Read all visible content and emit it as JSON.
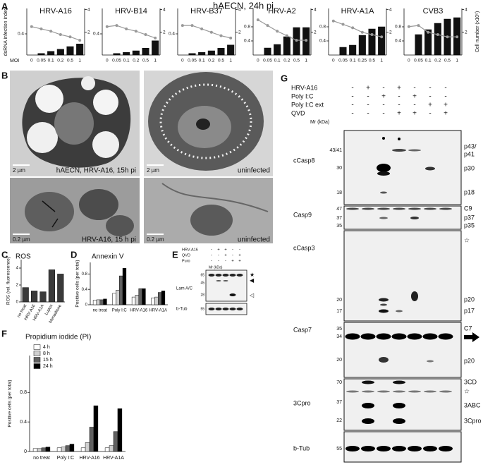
{
  "panel_labels": [
    "A",
    "B",
    "C",
    "D",
    "E",
    "F",
    "G"
  ],
  "panel_a": {
    "title": "hAECN, 24h pi",
    "y_label": "dsRNA infection index",
    "y2_label": "Cell number (x10⁵)",
    "x_label": "MOI"
  },
  "chart_data": [
    {
      "type": "bar",
      "title": "HRV-A16",
      "categories": [
        "0",
        "0.05",
        "0.1",
        "0.2",
        "0.5",
        "1"
      ],
      "series": [
        {
          "color": "#111111",
          "values": [
            0,
            0.03,
            0.07,
            0.11,
            0.16,
            0.21
          ]
        },
        {
          "color": "#999999",
          "type": "line",
          "axis": "y2",
          "values": [
            2.5,
            2.3,
            2.1,
            1.8,
            1.6,
            1.3
          ]
        }
      ],
      "ylim": [
        0,
        0.88
      ],
      "yticks": [
        0.4
      ],
      "y2lim": [
        0,
        4.1
      ],
      "y2ticks": [
        2,
        4
      ]
    },
    {
      "type": "bar",
      "title": "HRV-B14",
      "categories": [
        "0",
        "0.05",
        "0.1",
        "0.2",
        "0.5",
        "1"
      ],
      "series": [
        {
          "color": "#111111",
          "values": [
            0,
            0.03,
            0.05,
            0.08,
            0.13,
            0.27
          ]
        },
        {
          "color": "#999999",
          "type": "line",
          "axis": "y2",
          "values": [
            2.5,
            2.6,
            2.3,
            2.1,
            1.8,
            1.5
          ]
        }
      ],
      "ylim": [
        0,
        0.88
      ],
      "yticks": [
        0.4
      ],
      "y2lim": [
        0,
        4.1
      ],
      "y2ticks": [
        2,
        4
      ]
    },
    {
      "type": "bar",
      "title": "HRV-B37",
      "categories": [
        "0",
        "0.05",
        "0.1",
        "0.2",
        "0.5",
        "1"
      ],
      "series": [
        {
          "color": "#111111",
          "values": [
            0,
            0.03,
            0.05,
            0.08,
            0.13,
            0.19
          ]
        },
        {
          "color": "#999999",
          "type": "line",
          "axis": "y2",
          "values": [
            2.6,
            2.6,
            2.3,
            2.0,
            1.7,
            1.5
          ]
        }
      ],
      "ylim": [
        0,
        0.88
      ],
      "yticks": [
        0.4
      ],
      "y2lim": [
        0,
        4.1
      ],
      "y2ticks": [
        2,
        4
      ]
    },
    {
      "type": "bar",
      "title": "HRV-A2",
      "categories": [
        "0",
        "0.05",
        "0.1",
        "0.2",
        "0.5",
        "1"
      ],
      "series": [
        {
          "color": "#111111",
          "values": [
            0,
            0.2,
            0.3,
            0.52,
            0.78,
            0.78
          ]
        },
        {
          "color": "#999999",
          "type": "line",
          "axis": "y2",
          "values": [
            3.1,
            2.6,
            2.1,
            1.7,
            1.3,
            1.3
          ]
        }
      ],
      "ylim": [
        0,
        1.32
      ],
      "yticks": [
        0.4,
        0.8
      ],
      "y2lim": [
        0,
        4.1
      ],
      "y2ticks": [
        2,
        4
      ]
    },
    {
      "type": "bar",
      "title": "HRV-A1A",
      "categories": [
        "0",
        "0.05",
        "0.1",
        "0.25",
        "0.5",
        "1"
      ],
      "series": [
        {
          "color": "#111111",
          "values": [
            0,
            0.22,
            0.28,
            0.56,
            0.74,
            0.8
          ]
        },
        {
          "color": "#999999",
          "type": "line",
          "axis": "y2",
          "values": [
            3.0,
            2.7,
            2.4,
            2.0,
            1.8,
            1.6
          ]
        }
      ],
      "ylim": [
        0,
        1.32
      ],
      "yticks": [
        0.4,
        0.8
      ],
      "y2lim": [
        0,
        4.1
      ],
      "y2ticks": [
        2,
        4
      ]
    },
    {
      "type": "bar",
      "title": "CVB3",
      "categories": [
        "0",
        "0.05",
        "0.1",
        "0.2",
        "0.5",
        "1"
      ],
      "series": [
        {
          "color": "#111111",
          "values": [
            0,
            0.58,
            0.72,
            0.9,
            1.02,
            1.06
          ]
        },
        {
          "color": "#999999",
          "type": "line",
          "axis": "y2",
          "values": [
            2.5,
            2.6,
            2.0,
            1.8,
            1.6,
            1.6
          ]
        }
      ],
      "ylim": [
        0,
        1.32
      ],
      "yticks": [
        0.4,
        0.8
      ],
      "y2lim": [
        0,
        4.1
      ],
      "y2ticks": [
        2,
        4
      ]
    },
    {
      "type": "bar",
      "title": "ROS",
      "y_label": "ROS (rel. fluorescence)",
      "categories": [
        "no treat",
        "HRV-A16",
        "HRV-A1A",
        "Lupox",
        "Menadione"
      ],
      "series": [
        {
          "color": "#3a3a3a",
          "values": [
            1.7,
            1.3,
            1.2,
            3.8,
            3.3
          ]
        }
      ],
      "ylim": [
        0,
        5
      ],
      "yticks": [
        0,
        2,
        4
      ]
    },
    {
      "type": "bar",
      "title": "Annexin V",
      "y_label": "Positive cells (per total)",
      "categories": [
        "no treat",
        "Poly I:C",
        "HRV-A16",
        "HRV-A1A"
      ],
      "series": [
        {
          "color": "#ffffff",
          "values": [
            0.12,
            0.3,
            0.2,
            0.18
          ]
        },
        {
          "color": "#d0d0d0",
          "values": [
            0.13,
            0.38,
            0.25,
            0.2
          ]
        },
        {
          "color": "#606060",
          "values": [
            0.13,
            0.75,
            0.42,
            0.32
          ]
        },
        {
          "color": "#000000",
          "values": [
            0.15,
            0.95,
            0.42,
            0.36
          ]
        }
      ],
      "ylim": [
        0,
        1.1
      ],
      "yticks": [
        0,
        0.4,
        0.8
      ]
    },
    {
      "type": "bar",
      "title": "Propidium iodide (PI)",
      "y_label": "Positive cells (per total)",
      "categories": [
        "no treat",
        "Poly I:C",
        "HRV-A16",
        "HRV-A1A"
      ],
      "series": [
        {
          "name": "4 h",
          "color": "#ffffff",
          "values": [
            0.04,
            0.05,
            0.05,
            0.05
          ]
        },
        {
          "name": "8 h",
          "color": "#d0d0d0",
          "values": [
            0.04,
            0.06,
            0.12,
            0.08
          ]
        },
        {
          "name": "15 h",
          "color": "#606060",
          "values": [
            0.05,
            0.08,
            0.33,
            0.27
          ]
        },
        {
          "name": "24 h",
          "color": "#000000",
          "values": [
            0.06,
            0.1,
            0.62,
            0.58
          ]
        }
      ],
      "ylim": [
        0,
        1.3
      ],
      "yticks": [
        0,
        0.4,
        0.8
      ],
      "legend": "upper-left"
    }
  ],
  "panel_b": {
    "images": [
      {
        "scale": "2 µm",
        "caption": "hAECN, HRV-A16, 15h pi"
      },
      {
        "scale": "2 µm",
        "caption": "uninfected"
      },
      {
        "scale": "0.2 µm",
        "caption": "HRV-A16, 15 h pi"
      },
      {
        "scale": "0.2 µm",
        "caption": "uninfected"
      }
    ]
  },
  "panel_e": {
    "conditions": [
      {
        "label": "HRV-A16",
        "marks": [
          "-",
          "+",
          "+",
          "-",
          "-"
        ]
      },
      {
        "label": "QVD",
        "marks": [
          "-",
          "-",
          "+",
          "-",
          "+"
        ]
      },
      {
        "label": "Puro",
        "marks": [
          "-",
          "-",
          "-",
          "+",
          "+"
        ]
      }
    ],
    "mr_label": "Mr (kDa)",
    "blots": [
      {
        "label": "Lam A/C",
        "sizes": [
          "65",
          "45",
          "28"
        ],
        "markers": [
          "★",
          "◀",
          "◁"
        ]
      },
      {
        "label": "b-Tub",
        "sizes": [
          "55"
        ]
      }
    ]
  },
  "panel_g": {
    "conditions": [
      {
        "label": "HRV-A16",
        "marks": [
          "-",
          "+",
          "-",
          "+",
          "-",
          "-",
          "-"
        ]
      },
      {
        "label": "Poly I:C",
        "marks": [
          "-",
          "-",
          "+",
          "-",
          "+",
          "-",
          "-"
        ]
      },
      {
        "label": "Poly I:C ext",
        "marks": [
          "-",
          "-",
          "-",
          "-",
          "-",
          "+",
          "+"
        ]
      },
      {
        "label": "QVD",
        "marks": [
          "-",
          "-",
          "-",
          "+",
          "+",
          "-",
          "+"
        ]
      }
    ],
    "mr_label": "Mr (kDa)",
    "blots": [
      {
        "label": "cCasp8",
        "sizes": [
          "43/41",
          "30",
          "18"
        ],
        "bands": [
          "p43/",
          "p41",
          "p30",
          "p18"
        ]
      },
      {
        "label": "Casp9",
        "sizes": [
          "47",
          "37",
          "35"
        ],
        "bands": [
          "C9",
          "p37",
          "p35"
        ]
      },
      {
        "label": "cCasp3",
        "sizes": [
          "20",
          "17"
        ],
        "bands": [
          "☆",
          "p20",
          "p17"
        ]
      },
      {
        "label": "Casp7",
        "sizes": [
          "35",
          "34",
          "20"
        ],
        "bands": [
          "C7",
          "p20"
        ]
      },
      {
        "label": "3Cpro",
        "sizes": [
          "70",
          "37",
          "22"
        ],
        "bands": [
          "3CD",
          "☆",
          "3ABC",
          "3Cpro"
        ]
      },
      {
        "label": "b-Tub",
        "sizes": [
          "55"
        ]
      }
    ]
  }
}
